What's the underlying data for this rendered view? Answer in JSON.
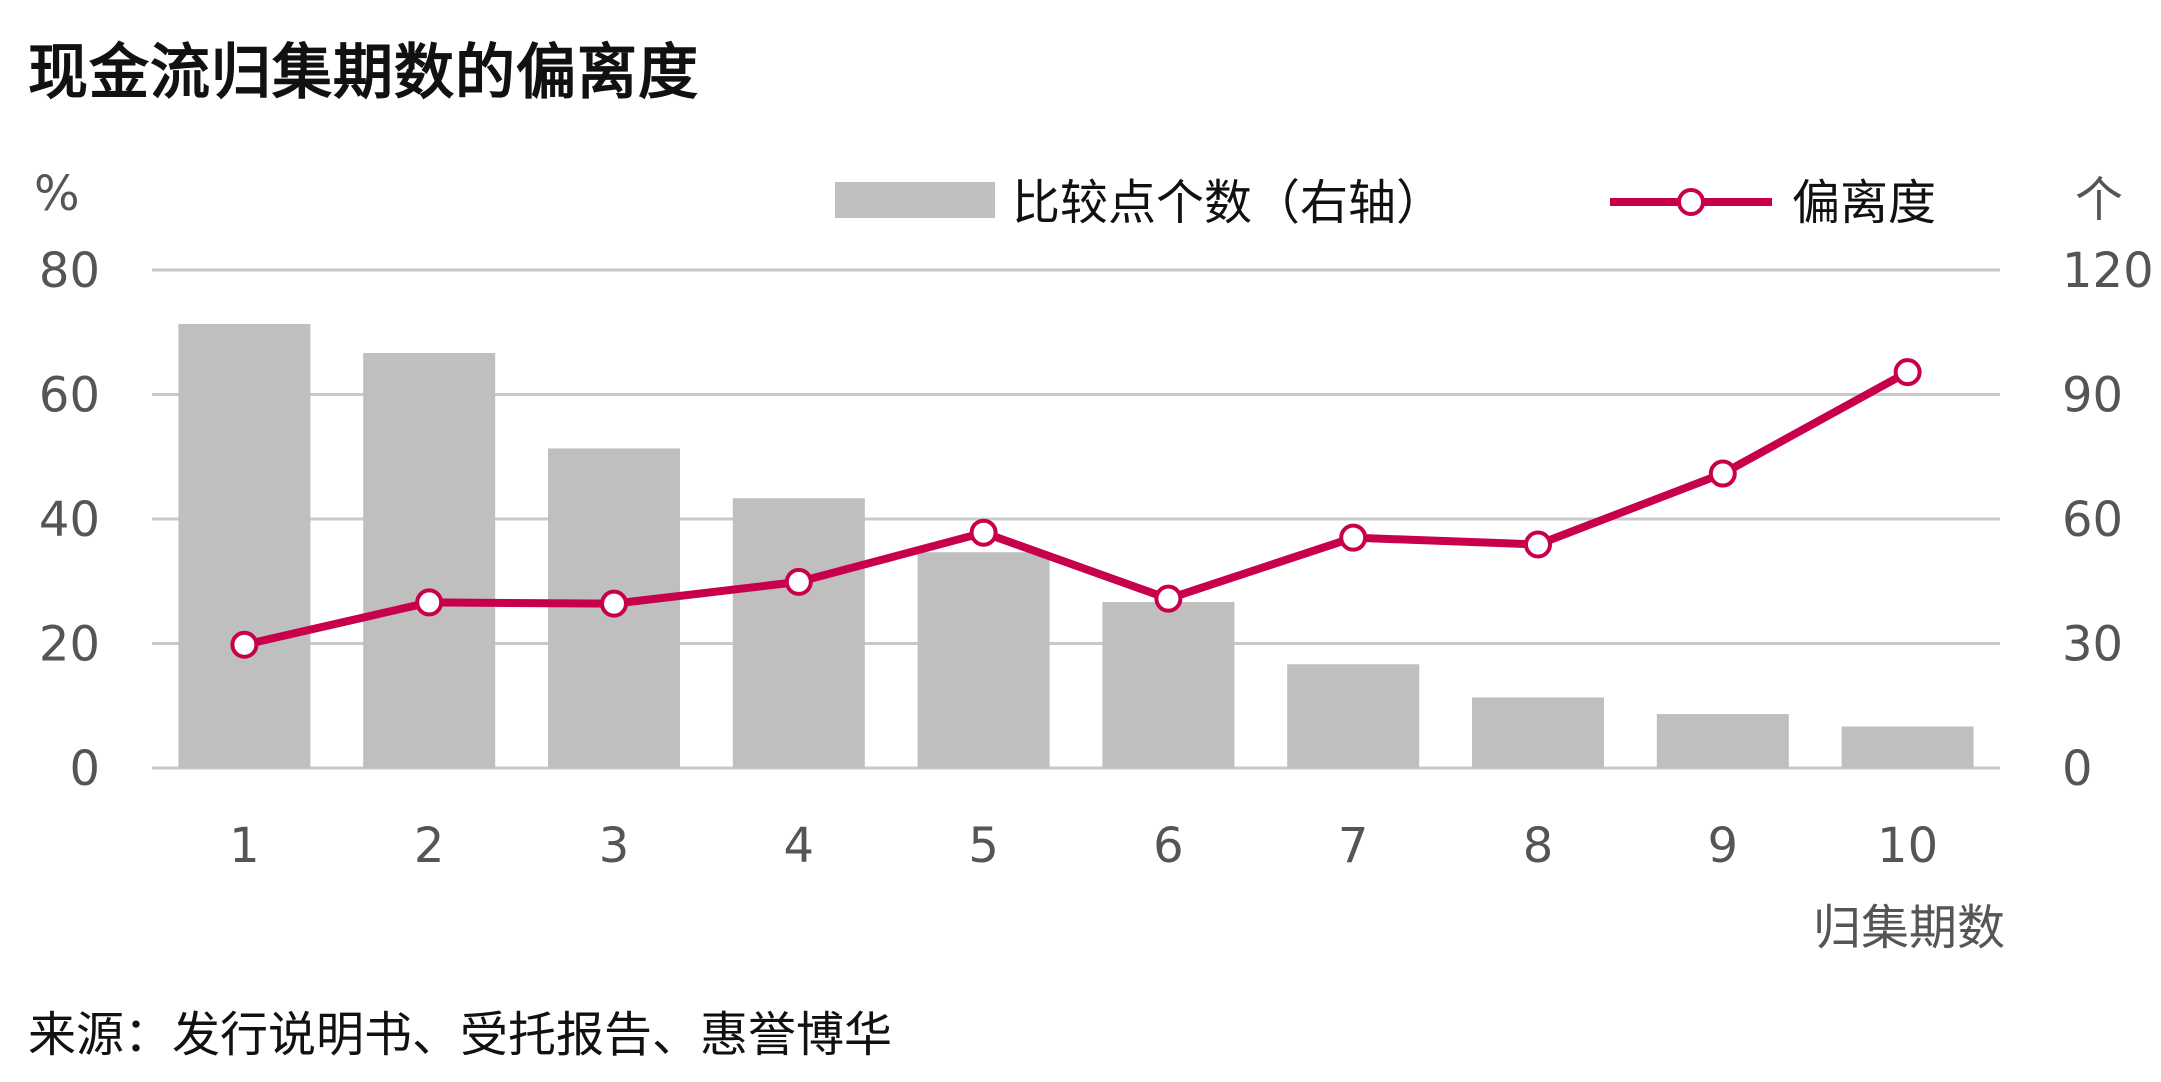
{
  "title": "现金流归集期数的偏离度",
  "source": "来源：发行说明书、受托报告、惠誉博华",
  "chart_data": {
    "type": "bar",
    "categories": [
      "1",
      "2",
      "3",
      "4",
      "5",
      "6",
      "7",
      "8",
      "9",
      "10"
    ],
    "xlabel": "归集期数",
    "ylabel_left": "%",
    "ylabel_right": "个",
    "ylim_left": [
      0,
      80
    ],
    "ylim_right": [
      0,
      120
    ],
    "yticks_left": [
      "0",
      "20",
      "40",
      "60",
      "80"
    ],
    "yticks_right": [
      "0",
      "30",
      "60",
      "90",
      "120"
    ],
    "grid": true,
    "legend_position": "top",
    "series": [
      {
        "name": "比较点个数（右轴）",
        "type": "bar",
        "axis": "right",
        "color": "#bfbfbf",
        "values": [
          107,
          100,
          77,
          65,
          52,
          40,
          25,
          17,
          13,
          10
        ]
      },
      {
        "name": "偏离度",
        "type": "line",
        "axis": "left",
        "color": "#c8004b",
        "values": [
          19.8,
          26.6,
          26.4,
          29.9,
          37.8,
          27.2,
          37.0,
          35.9,
          47.3,
          63.6
        ]
      }
    ]
  }
}
